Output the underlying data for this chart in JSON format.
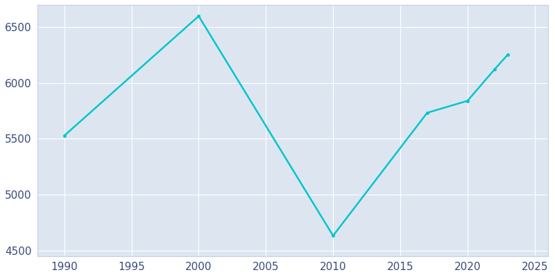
{
  "years": [
    1990,
    2000,
    2010,
    2017,
    2020,
    2022,
    2023
  ],
  "population": [
    5528,
    6599,
    4632,
    5733,
    5840,
    6120,
    6254
  ],
  "line_color": "#00C5CD",
  "marker": "o",
  "marker_size": 3,
  "plot_bg_color": "#DDE6F0",
  "fig_bg_color": "#ffffff",
  "xlim": [
    1988,
    2026
  ],
  "ylim": [
    4450,
    6700
  ],
  "xticks": [
    1990,
    1995,
    2000,
    2005,
    2010,
    2015,
    2020,
    2025
  ],
  "yticks": [
    4500,
    5000,
    5500,
    6000,
    6500
  ],
  "grid_color": "#ffffff",
  "spine_color": "#c5cfe0",
  "tick_label_color": "#3a4a7a",
  "linewidth": 1.8
}
